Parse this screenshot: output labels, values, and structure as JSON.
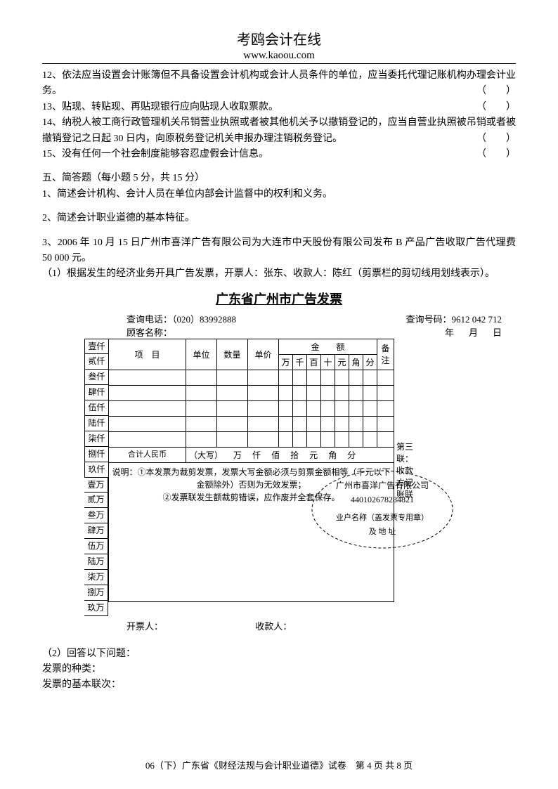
{
  "header": {
    "title": "考鸥会计在线",
    "url": "www.kaoou.com"
  },
  "questions": {
    "q12": "12、依法应当设置会计账簿但不具备设置会计机构或会计人员条件的单位，应当委托代理记账机构办理会计业务。",
    "q13": "13、贴现、转贴现、再贴现银行应向贴现人收取票款。",
    "q14": "14、纳税人被工商行政管理机关吊销营业执照或者被其他机关予以撤销登记的，应当自营业执照被吊销或者被撤销登记之日起 30 日内，向原税务登记机关申报办理注销税务登记。",
    "q15": "15、没有任何一个社会制度能够容忍虚假会计信息。",
    "bracket": "（　　）"
  },
  "section5": {
    "title": "五、简答题（每小题 5 分，共 15 分）",
    "q1": "1、简述会计机构、会计人员在单位内部会计监督中的权利和义务。",
    "q2": "2、简述会计职业道德的基本特征。",
    "q3a": "3、2006 年 10 月 15 日广州市喜洋广告有限公司为大连市中天股份有限公司发布 B 产品广告收取广告代理费 50 000 元。",
    "q3b": "（1）根据发生的经济业务开具广告发票，开票人：张东、收款人：陈红（剪票栏的剪切线用划线表示）。"
  },
  "invoice": {
    "title": "广东省广州市广告发票",
    "tel_label": "查询电话：",
    "tel": "（020）83992888",
    "qnum_label": "查询号码：",
    "qnum": "9612 042 712",
    "customer_label": "顾客名称：",
    "year": "年",
    "month": "月",
    "day": "日",
    "col_item": "项　目",
    "col_unit": "单位",
    "col_qty": "数量",
    "col_price": "单价",
    "col_amount": "金　　额",
    "col_note": "备注",
    "d_wan": "万",
    "d_qian": "千",
    "d_bai": "百",
    "d_shi": "十",
    "d_yuan": "元",
    "d_jiao": "角",
    "d_fen": "分",
    "total_label": "合计人民币",
    "daxie": "（大写）",
    "u_wan": "万",
    "u_qian": "仟",
    "u_bai": "佰",
    "u_shi": "拾",
    "u_yuan": "元",
    "u_jiao": "角",
    "u_fen": "分",
    "explain1": "说明：①本发票为裁剪发票，发票大写金额必须与剪票金额相等（千元以下金额除外）否则为无效发票；",
    "explain2": "②发票联发生额裁剪错误，应作废并全套保存。",
    "side_label": "第三联：收款方记账联",
    "stubs_q": [
      "壹仟",
      "贰仟",
      "叁仟",
      "肆仟",
      "伍仟",
      "陆仟",
      "柒仟",
      "捌仟",
      "玖仟"
    ],
    "stubs_w": [
      "壹万",
      "贰万",
      "叁万",
      "肆万",
      "伍万",
      "陆万",
      "柒万",
      "捌万",
      "玖万"
    ],
    "issuer": "开票人：",
    "payee": "收款人：",
    "seal_line1": "广州市喜洋广告有限公司",
    "seal_line2": "440102678284821",
    "seal_line3": "业户名称（盖发票专用章）",
    "seal_line4": "及 地 址"
  },
  "follow": {
    "q2": "（2）回答以下问题：",
    "l1": "发票的种类：",
    "l2": "发票的基本联次："
  },
  "footer": "06（下）广东省《财经法规与会计职业道德》试卷　第 4 页 共 8 页"
}
